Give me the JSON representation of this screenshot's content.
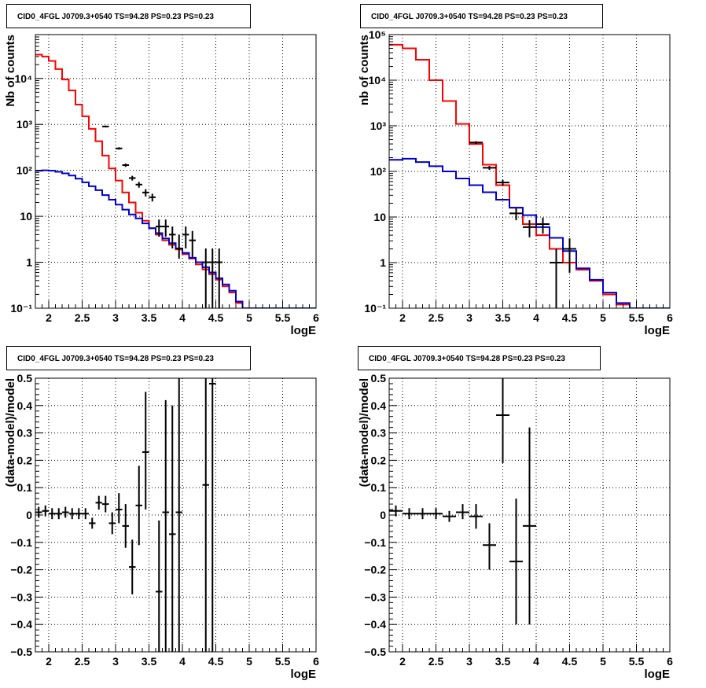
{
  "colors": {
    "data": "#000000",
    "total_model": "#ff0000",
    "background_model": "#0000cc",
    "grid": "#000000"
  },
  "chart_data": [
    {
      "type": "line",
      "title": "CID0_4FGL J0709.3+0540 TS=94.28 PS=0.23 PS=0.23",
      "xlabel": "logE",
      "ylabel": "Nb of counts",
      "xlim": [
        1.8,
        6.0
      ],
      "ylim": [
        0.1,
        90000
      ],
      "yscale": "log",
      "grid": true,
      "x_ticks": [
        2,
        2.5,
        3,
        3.5,
        4,
        4.5,
        5,
        5.5,
        6
      ],
      "x_tick_labels": [
        "2",
        "2.5",
        "3",
        "3.5",
        "4",
        "4.5",
        "5",
        "5.5",
        "6"
      ],
      "y_ticks": [
        0.1,
        1,
        10,
        100,
        1000,
        10000
      ],
      "y_tick_labels": [
        "10⁻¹",
        "1",
        "10",
        "10²",
        "10³",
        "10⁴"
      ],
      "bin_edges": [
        1.8,
        1.9,
        2.0,
        2.1,
        2.2,
        2.3,
        2.4,
        2.5,
        2.6,
        2.7,
        2.8,
        2.9,
        3.0,
        3.1,
        3.2,
        3.3,
        3.4,
        3.5,
        3.6,
        3.7,
        3.8,
        3.9,
        4.0,
        4.1,
        4.2,
        4.3,
        4.4,
        4.5,
        4.6,
        4.7,
        4.8,
        4.9,
        5.0,
        5.1,
        5.2,
        5.3,
        5.4,
        5.5,
        5.6,
        5.7,
        5.8,
        5.9,
        6.0
      ],
      "series": [
        {
          "values": [
            33000,
            30000,
            24000,
            16000,
            9500,
            5500,
            2700,
            1500,
            800,
            430,
            210,
            110,
            60,
            33,
            20,
            12,
            8,
            5.5,
            4,
            3,
            2.4,
            1.9,
            1.5,
            1.2,
            0.9,
            0.7,
            0.55,
            0.42,
            0.3,
            0.22,
            0.13,
            0.1,
            0.1,
            0.1,
            0.1,
            0.1,
            0.1,
            0.1,
            0.1,
            0.1,
            0.1,
            0.1
          ]
        },
        {
          "values": [
            98,
            100,
            98,
            93,
            86,
            77,
            66,
            55,
            45,
            37,
            29,
            23,
            18,
            14,
            11,
            9,
            7,
            5.5,
            4.3,
            3.3,
            2.6,
            2.0,
            1.6,
            1.25,
            1.0,
            0.78,
            0.6,
            0.45,
            0.33,
            0.24,
            0.14,
            0.1,
            0.1,
            0.1,
            0.1,
            0.1,
            0.1,
            0.1,
            0.1,
            0.1,
            0.1,
            0.1
          ]
        }
      ],
      "points": [
        {
          "x": 2.85,
          "y": 900,
          "xerr": 0.05,
          "ylo": 860,
          "yhi": 940
        },
        {
          "x": 3.05,
          "y": 300,
          "xerr": 0.05,
          "ylo": 283,
          "yhi": 317
        },
        {
          "x": 3.15,
          "y": 130,
          "xerr": 0.05,
          "ylo": 119,
          "yhi": 141
        },
        {
          "x": 3.25,
          "y": 68,
          "xerr": 0.05,
          "ylo": 60,
          "yhi": 76
        },
        {
          "x": 3.35,
          "y": 49,
          "xerr": 0.05,
          "ylo": 42,
          "yhi": 56
        },
        {
          "x": 3.45,
          "y": 33,
          "xerr": 0.05,
          "ylo": 27,
          "yhi": 39
        },
        {
          "x": 3.55,
          "y": 26,
          "xerr": 0.05,
          "ylo": 21,
          "yhi": 31
        },
        {
          "x": 3.65,
          "y": 6,
          "xerr": 0.05,
          "ylo": 3.6,
          "yhi": 8.5
        },
        {
          "x": 3.75,
          "y": 6,
          "xerr": 0.05,
          "ylo": 3.6,
          "yhi": 8.5
        },
        {
          "x": 3.85,
          "y": 4,
          "xerr": 0.05,
          "ylo": 2.0,
          "yhi": 6.0
        },
        {
          "x": 3.95,
          "y": 2,
          "xerr": 0.05,
          "ylo": 1.2,
          "yhi": 4.0
        },
        {
          "x": 4.05,
          "y": 4,
          "xerr": 0.05,
          "ylo": 2.0,
          "yhi": 6.0
        },
        {
          "x": 4.15,
          "y": 3,
          "xerr": 0.05,
          "ylo": 1.3,
          "yhi": 4.8
        },
        {
          "x": 4.35,
          "y": 1,
          "xerr": 0.05,
          "ylo": 0.1,
          "yhi": 2.0
        },
        {
          "x": 4.45,
          "y": 1,
          "xerr": 0.05,
          "ylo": 0.1,
          "yhi": 2.0
        },
        {
          "x": 4.55,
          "y": 1,
          "xerr": 0.05,
          "ylo": 0.1,
          "yhi": 2.0
        }
      ]
    },
    {
      "type": "line",
      "title": "CID0_4FGL J0709.3+0540 TS=94.28 PS=0.23 PS=0.23",
      "xlabel": "logE",
      "ylabel": "nb of counts",
      "xlim": [
        1.8,
        6.0
      ],
      "ylim": [
        0.1,
        100000
      ],
      "yscale": "log",
      "grid": true,
      "x_ticks": [
        2,
        2.5,
        3,
        3.5,
        4,
        4.5,
        5,
        5.5,
        6
      ],
      "x_tick_labels": [
        "2",
        "2.5",
        "3",
        "3.5",
        "4",
        "4.5",
        "5",
        "5.5",
        "6"
      ],
      "y_ticks": [
        0.1,
        1,
        10,
        100,
        1000,
        10000,
        100000
      ],
      "y_tick_labels": [
        "10⁻¹",
        "1",
        "10",
        "10²",
        "10³",
        "10⁴",
        "10⁵"
      ],
      "bin_edges": [
        1.8,
        2.0,
        2.2,
        2.4,
        2.6,
        2.8,
        3.0,
        3.2,
        3.4,
        3.6,
        3.8,
        4.0,
        4.2,
        4.4,
        4.6,
        4.8,
        5.0,
        5.2,
        5.4,
        5.6,
        5.8,
        6.0
      ],
      "series": [
        {
          "values": [
            60000,
            50000,
            28000,
            10000,
            3500,
            1100,
            400,
            140,
            50,
            16,
            7,
            4,
            2,
            1.0,
            0.7,
            0.4,
            0.2,
            0.12,
            0.1,
            0.1,
            0.1
          ]
        },
        {
          "values": [
            180,
            190,
            160,
            130,
            100,
            70,
            50,
            35,
            24,
            16,
            11,
            6,
            3.5,
            1.8,
            0.75,
            0.42,
            0.22,
            0.13,
            0.1,
            0.1,
            0.1
          ]
        }
      ],
      "points": [
        {
          "x": 3.1,
          "y": 430,
          "xerr": 0.1,
          "ylo": 400,
          "yhi": 460
        },
        {
          "x": 3.3,
          "y": 120,
          "xerr": 0.1,
          "ylo": 108,
          "yhi": 132
        },
        {
          "x": 3.5,
          "y": 57,
          "xerr": 0.1,
          "ylo": 49,
          "yhi": 65
        },
        {
          "x": 3.7,
          "y": 12,
          "xerr": 0.1,
          "ylo": 8.5,
          "yhi": 15.5
        },
        {
          "x": 3.9,
          "y": 6,
          "xerr": 0.1,
          "ylo": 3.6,
          "yhi": 8.5
        },
        {
          "x": 4.1,
          "y": 7,
          "xerr": 0.1,
          "ylo": 4.3,
          "yhi": 9.7
        },
        {
          "x": 4.3,
          "y": 1,
          "xerr": 0.1,
          "ylo": 0.1,
          "yhi": 2.0
        },
        {
          "x": 4.5,
          "y": 2,
          "xerr": 0.1,
          "ylo": 0.6,
          "yhi": 3.4
        }
      ]
    },
    {
      "type": "scatter",
      "title": "CID0_4FGL J0709.3+0540 TS=94.28 PS=0.23 PS=0.23",
      "xlabel": "logE",
      "ylabel": "(data-model)/model",
      "xlim": [
        1.8,
        6.0
      ],
      "ylim": [
        -0.5,
        0.5
      ],
      "grid": true,
      "x_ticks": [
        2,
        2.5,
        3,
        3.5,
        4,
        4.5,
        5,
        5.5,
        6
      ],
      "x_tick_labels": [
        "2",
        "2.5",
        "3",
        "3.5",
        "4",
        "4.5",
        "5",
        "5.5",
        "6"
      ],
      "y_ticks": [
        -0.5,
        -0.4,
        -0.3,
        -0.2,
        -0.1,
        0,
        0.1,
        0.2,
        0.3,
        0.4,
        0.5
      ],
      "y_tick_labels": [
        "−0.5",
        "−0.4",
        "−0.3",
        "−0.2",
        "−0.1",
        "0",
        "0.1",
        "0.2",
        "0.3",
        "0.4",
        "0.5"
      ],
      "points": [
        {
          "x": 1.85,
          "y": 0.01,
          "xerr": 0.05,
          "ylo": -0.01,
          "yhi": 0.03
        },
        {
          "x": 1.95,
          "y": 0.015,
          "xerr": 0.05,
          "ylo": -0.005,
          "yhi": 0.035
        },
        {
          "x": 2.05,
          "y": 0.005,
          "xerr": 0.05,
          "ylo": -0.015,
          "yhi": 0.025
        },
        {
          "x": 2.15,
          "y": 0.005,
          "xerr": 0.05,
          "ylo": -0.015,
          "yhi": 0.025
        },
        {
          "x": 2.25,
          "y": 0.01,
          "xerr": 0.05,
          "ylo": -0.01,
          "yhi": 0.03
        },
        {
          "x": 2.35,
          "y": 0.005,
          "xerr": 0.05,
          "ylo": -0.015,
          "yhi": 0.025
        },
        {
          "x": 2.45,
          "y": 0.005,
          "xerr": 0.05,
          "ylo": -0.015,
          "yhi": 0.025
        },
        {
          "x": 2.55,
          "y": 0.005,
          "xerr": 0.05,
          "ylo": -0.015,
          "yhi": 0.025
        },
        {
          "x": 2.65,
          "y": -0.03,
          "xerr": 0.05,
          "ylo": -0.05,
          "yhi": -0.01
        },
        {
          "x": 2.75,
          "y": 0.045,
          "xerr": 0.05,
          "ylo": 0.02,
          "yhi": 0.07
        },
        {
          "x": 2.85,
          "y": 0.04,
          "xerr": 0.05,
          "ylo": 0.01,
          "yhi": 0.07
        },
        {
          "x": 2.95,
          "y": -0.03,
          "xerr": 0.05,
          "ylo": -0.07,
          "yhi": 0.01
        },
        {
          "x": 3.05,
          "y": 0.02,
          "xerr": 0.05,
          "ylo": -0.03,
          "yhi": 0.08
        },
        {
          "x": 3.15,
          "y": -0.04,
          "xerr": 0.05,
          "ylo": -0.12,
          "yhi": 0.04
        },
        {
          "x": 3.25,
          "y": -0.19,
          "xerr": 0.05,
          "ylo": -0.29,
          "yhi": -0.09
        },
        {
          "x": 3.35,
          "y": 0.035,
          "xerr": 0.05,
          "ylo": -0.11,
          "yhi": 0.18
        },
        {
          "x": 3.45,
          "y": 0.23,
          "xerr": 0.05,
          "ylo": 0.02,
          "yhi": 0.45
        },
        {
          "x": 3.65,
          "y": -0.28,
          "xerr": 0.05,
          "ylo": -0.5,
          "yhi": -0.02
        },
        {
          "x": 3.75,
          "y": 0.01,
          "xerr": 0.05,
          "ylo": -0.5,
          "yhi": 0.42
        },
        {
          "x": 3.85,
          "y": -0.07,
          "xerr": 0.05,
          "ylo": -0.5,
          "yhi": 0.4
        },
        {
          "x": 3.95,
          "y": 0.01,
          "xerr": 0.05,
          "ylo": -0.5,
          "yhi": 0.5
        },
        {
          "x": 4.35,
          "y": 0.11,
          "xerr": 0.05,
          "ylo": -0.5,
          "yhi": 0.5
        },
        {
          "x": 4.45,
          "y": 0.48,
          "xerr": 0.05,
          "ylo": -0.5,
          "yhi": 0.5
        }
      ]
    },
    {
      "type": "scatter",
      "title": "CID0_4FGL J0709.3+0540 TS=94.28 PS=0.23 PS=0.23",
      "xlabel": "logE",
      "ylabel": "(data-model)/model",
      "xlim": [
        1.8,
        6.0
      ],
      "ylim": [
        -0.5,
        0.5
      ],
      "grid": true,
      "x_ticks": [
        2,
        2.5,
        3,
        3.5,
        4,
        4.5,
        5,
        5.5,
        6
      ],
      "x_tick_labels": [
        "2",
        "2.5",
        "3",
        "3.5",
        "4",
        "4.5",
        "5",
        "5.5",
        "6"
      ],
      "y_ticks": [
        -0.5,
        -0.4,
        -0.3,
        -0.2,
        -0.1,
        0,
        0.1,
        0.2,
        0.3,
        0.4,
        0.5
      ],
      "y_tick_labels": [
        "−0.5",
        "−0.4",
        "−0.3",
        "−0.2",
        "−0.1",
        "0",
        "0.1",
        "0.2",
        "0.3",
        "0.4",
        "0.5"
      ],
      "points": [
        {
          "x": 1.9,
          "y": 0.015,
          "xerr": 0.1,
          "ylo": -0.005,
          "yhi": 0.035
        },
        {
          "x": 2.1,
          "y": 0.005,
          "xerr": 0.1,
          "ylo": -0.015,
          "yhi": 0.025
        },
        {
          "x": 2.3,
          "y": 0.005,
          "xerr": 0.1,
          "ylo": -0.015,
          "yhi": 0.025
        },
        {
          "x": 2.5,
          "y": 0.005,
          "xerr": 0.1,
          "ylo": -0.015,
          "yhi": 0.025
        },
        {
          "x": 2.7,
          "y": -0.005,
          "xerr": 0.1,
          "ylo": -0.025,
          "yhi": 0.015
        },
        {
          "x": 2.9,
          "y": 0.01,
          "xerr": 0.1,
          "ylo": -0.015,
          "yhi": 0.04
        },
        {
          "x": 3.1,
          "y": -0.005,
          "xerr": 0.1,
          "ylo": -0.05,
          "yhi": 0.04
        },
        {
          "x": 3.3,
          "y": -0.11,
          "xerr": 0.1,
          "ylo": -0.2,
          "yhi": -0.03
        },
        {
          "x": 3.5,
          "y": 0.365,
          "xerr": 0.1,
          "ylo": 0.19,
          "yhi": 0.5
        },
        {
          "x": 3.7,
          "y": -0.17,
          "xerr": 0.1,
          "ylo": -0.4,
          "yhi": 0.06
        },
        {
          "x": 3.9,
          "y": -0.04,
          "xerr": 0.1,
          "ylo": -0.4,
          "yhi": 0.32
        }
      ]
    }
  ]
}
